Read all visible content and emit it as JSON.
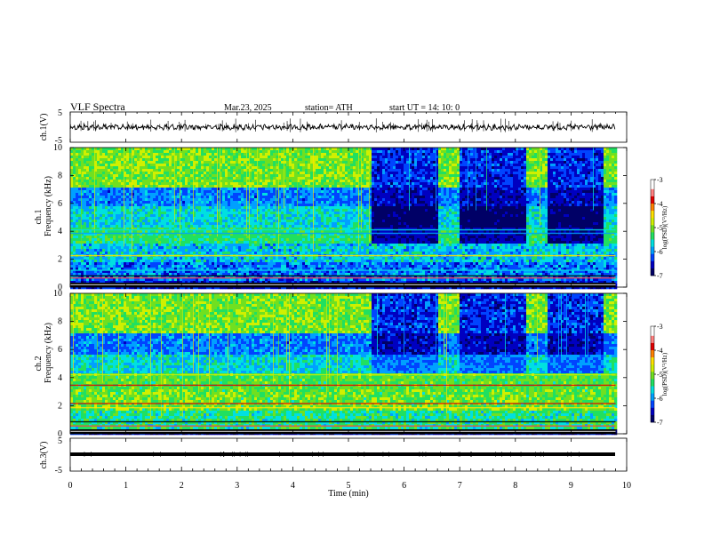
{
  "header": {
    "title": "VLF  Spectra",
    "date": "Mar.23, 2025",
    "station": "station= ATH",
    "start": "start  UT  =   14: 10: 0"
  },
  "colors": {
    "spectral_map": [
      "#000066",
      "#0000c0",
      "#0044ff",
      "#00a0ff",
      "#00e0e0",
      "#20e060",
      "#70e020",
      "#d0f000",
      "#ffe000",
      "#ff8000",
      "#e00000",
      "#ff8080",
      "#ffffff"
    ]
  },
  "chart_data": [
    {
      "type": "line",
      "panel": "ch1-waveform",
      "ylabel": "ch.1(V)",
      "ylim": [
        -5,
        5
      ],
      "yticks": [
        "5",
        "-5"
      ],
      "x": [
        0,
        9.8
      ],
      "baseline": 0,
      "description_level": "noisy waveform around 0 V"
    },
    {
      "type": "heatmap",
      "panel": "ch1-spectrogram",
      "ylabel": "ch.1",
      "ylabel2": "Frequency  (kHz)",
      "ylim": [
        0,
        10
      ],
      "yticks": [
        "0",
        "2",
        "4",
        "6",
        "8",
        "10"
      ],
      "xlim": [
        0,
        9.8
      ],
      "colorbar": {
        "label": "log(PSD)(V²/Hz)",
        "range": [
          -7,
          -3
        ],
        "ticks": [
          "-3",
          "-4",
          "-5",
          "-6",
          "-7"
        ]
      },
      "segments": [
        {
          "start": 0,
          "end": 5.4,
          "state": "active"
        },
        {
          "start": 5.4,
          "end": 6.6,
          "state": "quiet"
        },
        {
          "start": 6.6,
          "end": 6.95,
          "state": "active"
        },
        {
          "start": 6.95,
          "end": 8.15,
          "state": "quiet"
        },
        {
          "start": 8.15,
          "end": 8.55,
          "state": "active"
        },
        {
          "start": 8.55,
          "end": 9.55,
          "state": "quiet"
        },
        {
          "start": 9.55,
          "end": 9.8,
          "state": "active"
        }
      ]
    },
    {
      "type": "heatmap",
      "panel": "ch2-spectrogram",
      "ylabel": "ch.2",
      "ylabel2": "Frequency  (kHz)",
      "ylim": [
        0,
        10
      ],
      "yticks": [
        "0",
        "2",
        "4",
        "6",
        "8",
        "10"
      ],
      "xlim": [
        0,
        9.8
      ],
      "colorbar": {
        "label": "log(PSD)(V²/Hz)",
        "range": [
          -7,
          -3
        ],
        "ticks": [
          "-3",
          "-4",
          "-5",
          "-6",
          "-7"
        ]
      },
      "segments": [
        {
          "start": 0,
          "end": 5.4,
          "state": "active"
        },
        {
          "start": 5.4,
          "end": 6.6,
          "state": "quiet"
        },
        {
          "start": 6.6,
          "end": 6.95,
          "state": "active"
        },
        {
          "start": 6.95,
          "end": 8.15,
          "state": "quiet"
        },
        {
          "start": 8.15,
          "end": 8.55,
          "state": "active"
        },
        {
          "start": 8.55,
          "end": 9.55,
          "state": "quiet"
        },
        {
          "start": 9.55,
          "end": 9.8,
          "state": "active"
        }
      ]
    },
    {
      "type": "line",
      "panel": "ch3-waveform",
      "ylabel": "ch.3(V)",
      "ylim": [
        -5,
        5
      ],
      "yticks": [
        "5",
        "-5"
      ],
      "x": [
        0,
        9.8
      ],
      "baseline": 0
    }
  ],
  "xaxis": {
    "label": "Time  (min)",
    "ticks": [
      "0",
      "1",
      "2",
      "3",
      "4",
      "5",
      "6",
      "7",
      "8",
      "9",
      "10"
    ],
    "range": [
      0,
      10
    ]
  }
}
